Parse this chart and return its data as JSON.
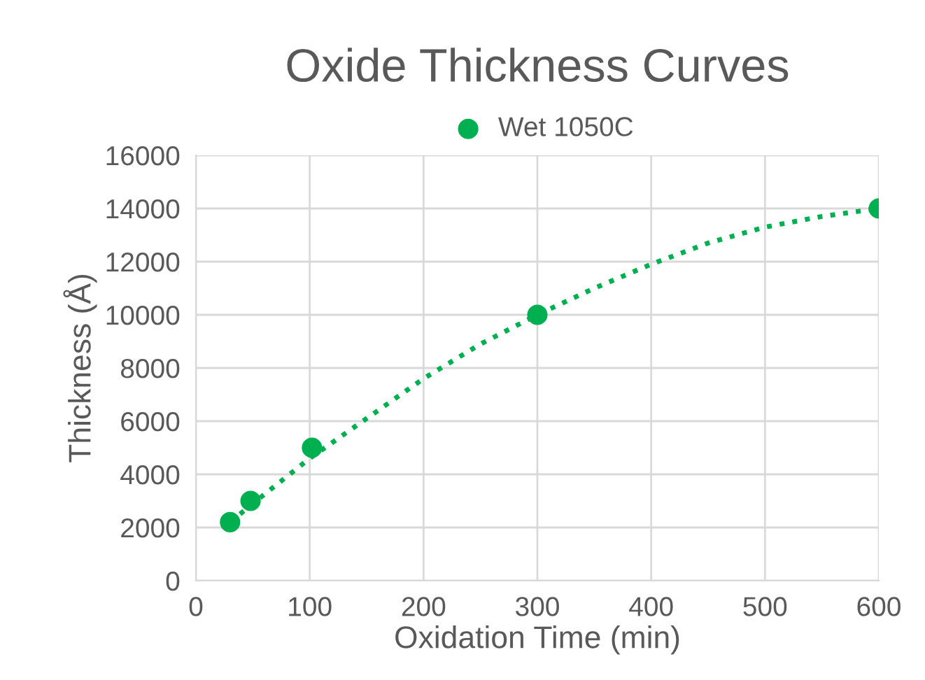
{
  "chart_data": {
    "type": "scatter",
    "title": "Oxide Thickness Curves",
    "xlabel": "Oxidation Time (min)",
    "ylabel": "Thickness (Å)",
    "series": [
      {
        "name": "Wet 1050C",
        "color": "#00b050",
        "marker": "circle",
        "x": [
          30,
          48,
          102,
          300,
          600
        ],
        "values": [
          2200,
          3000,
          5000,
          10000,
          14000
        ]
      },
      {
        "color": "#00b050",
        "type": "line",
        "line_style": "dotted",
        "marker": "none",
        "x": [
          30,
          50,
          100,
          150,
          200,
          250,
          300,
          350,
          400,
          450,
          500,
          550,
          600
        ],
        "values": [
          2200,
          2900,
          4600,
          6100,
          7600,
          8900,
          10000,
          11000,
          11900,
          12700,
          13300,
          13700,
          14000
        ]
      }
    ],
    "xlim": [
      0,
      600
    ],
    "xticks": [
      0,
      100,
      200,
      300,
      400,
      500,
      600
    ],
    "ylim": [
      0,
      16000
    ],
    "yticks": [
      0,
      2000,
      4000,
      6000,
      8000,
      10000,
      12000,
      14000,
      16000
    ],
    "grid": true,
    "legend": "top"
  }
}
